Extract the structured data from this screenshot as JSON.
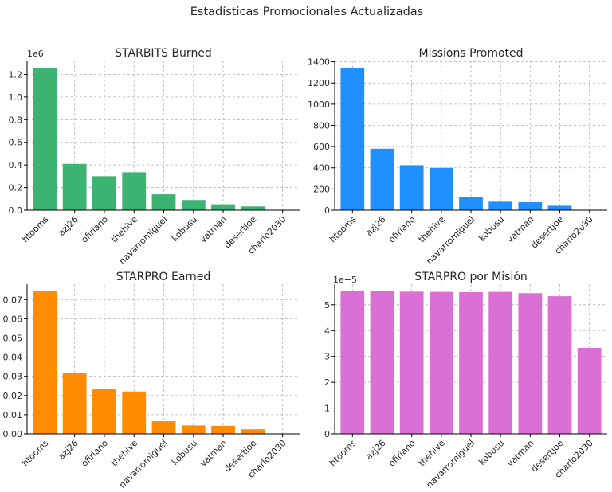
{
  "figure": {
    "suptitle": "Estadísticas Promocionales Actualizadas"
  },
  "chart_data": [
    {
      "type": "bar",
      "title": "STARBITS Burned",
      "color": "#3cb371",
      "categories": [
        "htooms",
        "azj26",
        "ofiriano",
        "thehive",
        "navarromiguel",
        "kobusu",
        "vatman",
        "desertjoe",
        "charlo2030"
      ],
      "values": [
        1260000,
        410000,
        300000,
        335000,
        140000,
        90000,
        52000,
        33000,
        0
      ],
      "ylim": [
        0,
        1323000
      ],
      "yticks": [
        0,
        200000,
        400000,
        600000,
        800000,
        1000000,
        1200000
      ],
      "yticklabels": [
        "0.0",
        "0.2",
        "0.4",
        "0.6",
        "0.8",
        "1.0",
        "1.2"
      ],
      "offset_label": "1e6",
      "grid": true
    },
    {
      "type": "bar",
      "title": "Missions Promoted",
      "color": "#1e90ff",
      "categories": [
        "htooms",
        "azj26",
        "ofiriano",
        "thehive",
        "navarromiguel",
        "kobusu",
        "vatman",
        "desertjoe",
        "charlo2030"
      ],
      "values": [
        1345,
        580,
        425,
        400,
        120,
        80,
        75,
        42,
        0
      ],
      "ylim": [
        0,
        1412
      ],
      "yticks": [
        0,
        200,
        400,
        600,
        800,
        1000,
        1200,
        1400
      ],
      "yticklabels": [
        "0",
        "200",
        "400",
        "600",
        "800",
        "1000",
        "1200",
        "1400"
      ],
      "offset_label": "",
      "grid": true
    },
    {
      "type": "bar",
      "title": "STARPRO Earned",
      "color": "#ff8c00",
      "categories": [
        "htooms",
        "azj26",
        "ofiriano",
        "thehive",
        "navarromiguel",
        "kobusu",
        "vatman",
        "desertjoe",
        "charlo2030"
      ],
      "values": [
        0.0743,
        0.0319,
        0.0235,
        0.0221,
        0.0066,
        0.0044,
        0.0042,
        0.0024,
        0
      ],
      "ylim": [
        0,
        0.078
      ],
      "yticks": [
        0,
        0.01,
        0.02,
        0.03,
        0.04,
        0.05,
        0.06,
        0.07
      ],
      "yticklabels": [
        "0.00",
        "0.01",
        "0.02",
        "0.03",
        "0.04",
        "0.05",
        "0.06",
        "0.07"
      ],
      "offset_label": "",
      "grid": true
    },
    {
      "type": "bar",
      "title": "STARPRO por Misión",
      "color": "#da70d6",
      "categories": [
        "htooms",
        "azj26",
        "ofiriano",
        "thehive",
        "navarromiguel",
        "kobusu",
        "vatman",
        "desertjoe",
        "charlo2030"
      ],
      "values": [
        5.52e-05,
        5.52e-05,
        5.51e-05,
        5.5e-05,
        5.49e-05,
        5.5e-05,
        5.45e-05,
        5.33e-05,
        3.33e-05
      ],
      "ylim": [
        0,
        5.796e-05
      ],
      "yticks": [
        0,
        1e-05,
        2e-05,
        3e-05,
        4e-05,
        5e-05
      ],
      "yticklabels": [
        "0",
        "1",
        "2",
        "3",
        "4",
        "5"
      ],
      "offset_label": "1e−5",
      "grid": true
    }
  ]
}
